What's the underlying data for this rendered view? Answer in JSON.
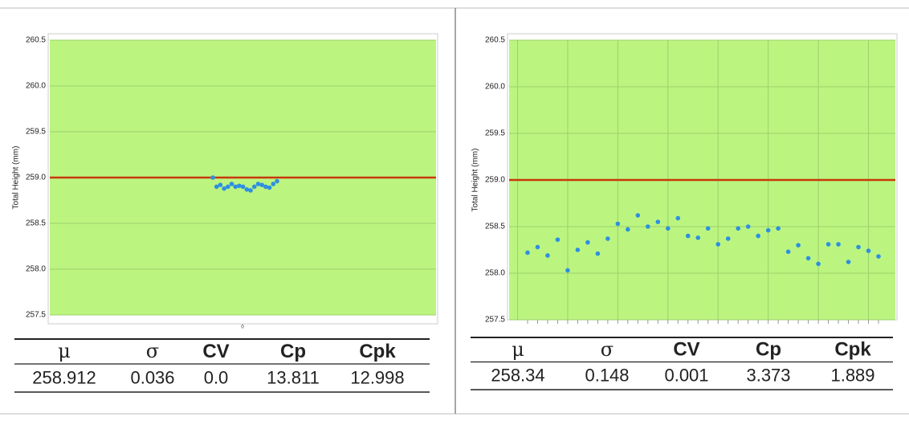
{
  "chart_data": [
    {
      "type": "scatter",
      "ylabel": "Total Height  (mm)",
      "annotation": "0",
      "values": [
        259.0,
        258.9,
        258.92,
        258.88,
        258.9,
        258.93,
        258.9,
        258.91,
        258.9,
        258.87,
        258.86,
        258.9,
        258.93,
        258.92,
        258.9,
        258.89,
        258.93,
        258.96
      ],
      "color": "#2f8fe0",
      "background": "#bbf580",
      "target": 259,
      "target_color": "#c8380a",
      "ylim": [
        257.5,
        260.5
      ],
      "yticks": [
        257.5,
        {
          "value": 258,
          "label": "258.0"
        },
        258.5,
        {
          "value": 259,
          "label": "259.0"
        },
        259.5,
        {
          "value": 260,
          "label": "260.0"
        },
        260.5
      ],
      "grid": true,
      "xgrid": false,
      "stats": {
        "header": [
          "μ",
          "σ",
          "CV",
          "Cp",
          "Cpk"
        ],
        "values": [
          "258.912",
          "0.036",
          "0.0",
          "13.811",
          "12.998"
        ]
      }
    },
    {
      "type": "scatter",
      "ylabel": "Total Height  (mm)",
      "values": [
        258.22,
        258.28,
        258.19,
        258.36,
        258.03,
        258.25,
        258.33,
        258.21,
        258.37,
        258.53,
        258.47,
        258.62,
        258.5,
        258.55,
        258.48,
        258.59,
        258.4,
        258.38,
        258.48,
        258.31,
        258.37,
        258.48,
        258.5,
        258.4,
        258.46,
        258.48,
        258.23,
        258.3,
        258.16,
        258.1,
        258.31,
        258.31,
        258.12,
        258.28,
        258.24,
        258.18
      ],
      "color": "#2f8fe0",
      "background": "#bbf580",
      "target": 259,
      "target_color": "#c8380a",
      "ylim": [
        257.5,
        260.5
      ],
      "yticks": [
        257.5,
        {
          "value": 258,
          "label": "258.0"
        },
        258.5,
        {
          "value": 259,
          "label": "259.0"
        },
        259.5,
        {
          "value": 260,
          "label": "260.0"
        },
        260.5
      ],
      "grid": true,
      "xgrid": true,
      "stats": {
        "header": [
          "μ",
          "σ",
          "CV",
          "Cp",
          "Cpk"
        ],
        "values": [
          "258.34",
          "0.148",
          "0.001",
          "3.373",
          "1.889"
        ]
      }
    }
  ]
}
